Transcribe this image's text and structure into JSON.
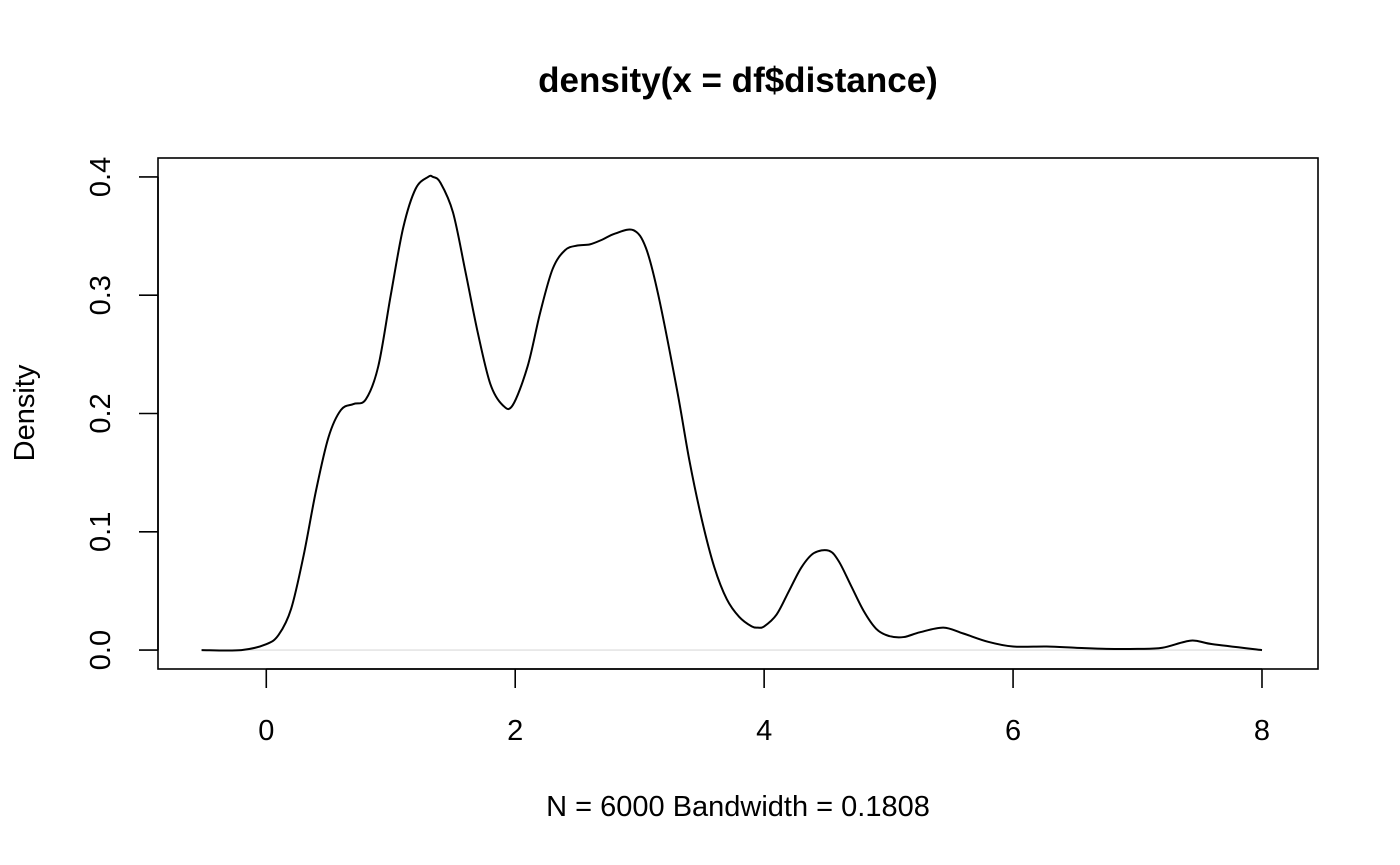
{
  "chart_data": {
    "type": "line",
    "title": "density(x = df$distance)",
    "xlabel": "N = 6000   Bandwidth = 0.1808",
    "ylabel": "Density",
    "xlim": [
      -0.87,
      8.45
    ],
    "ylim": [
      -0.016,
      0.416
    ],
    "x_ticks": [
      0,
      2,
      4,
      6,
      8
    ],
    "y_ticks": [
      0.0,
      0.1,
      0.2,
      0.3,
      0.4
    ],
    "x_tick_labels": [
      "0",
      "2",
      "4",
      "6",
      "8"
    ],
    "y_tick_labels": [
      "0.0",
      "0.1",
      "0.2",
      "0.3",
      "0.4"
    ],
    "grid": false,
    "baseline": 0,
    "line_color": "#000000",
    "baseline_color": "#d9d9d9",
    "series": [
      {
        "x": [
          -0.52,
          -0.2,
          0.0,
          0.1,
          0.2,
          0.3,
          0.4,
          0.5,
          0.6,
          0.7,
          0.8,
          0.9,
          1.0,
          1.1,
          1.2,
          1.3,
          1.34,
          1.4,
          1.5,
          1.6,
          1.7,
          1.8,
          1.9,
          1.98,
          2.1,
          2.2,
          2.3,
          2.4,
          2.5,
          2.6,
          2.7,
          2.8,
          2.95,
          3.05,
          3.15,
          3.3,
          3.4,
          3.5,
          3.6,
          3.7,
          3.8,
          3.9,
          3.95,
          4.0,
          4.1,
          4.2,
          4.3,
          4.4,
          4.52,
          4.6,
          4.7,
          4.8,
          4.9,
          5.0,
          5.12,
          5.25,
          5.44,
          5.6,
          5.8,
          6.0,
          6.27,
          6.5,
          6.75,
          7.0,
          7.2,
          7.43,
          7.6,
          8.0
        ],
        "y": [
          0.0,
          0.0,
          0.005,
          0.013,
          0.035,
          0.08,
          0.135,
          0.18,
          0.203,
          0.208,
          0.212,
          0.24,
          0.3,
          0.357,
          0.39,
          0.4,
          0.4,
          0.395,
          0.37,
          0.32,
          0.268,
          0.225,
          0.207,
          0.207,
          0.24,
          0.285,
          0.322,
          0.338,
          0.342,
          0.343,
          0.347,
          0.352,
          0.355,
          0.34,
          0.3,
          0.22,
          0.16,
          0.11,
          0.07,
          0.043,
          0.028,
          0.02,
          0.019,
          0.02,
          0.03,
          0.05,
          0.07,
          0.082,
          0.084,
          0.075,
          0.054,
          0.033,
          0.018,
          0.012,
          0.011,
          0.015,
          0.019,
          0.014,
          0.007,
          0.003,
          0.003,
          0.002,
          0.001,
          0.001,
          0.002,
          0.008,
          0.005,
          0.0
        ]
      }
    ]
  }
}
